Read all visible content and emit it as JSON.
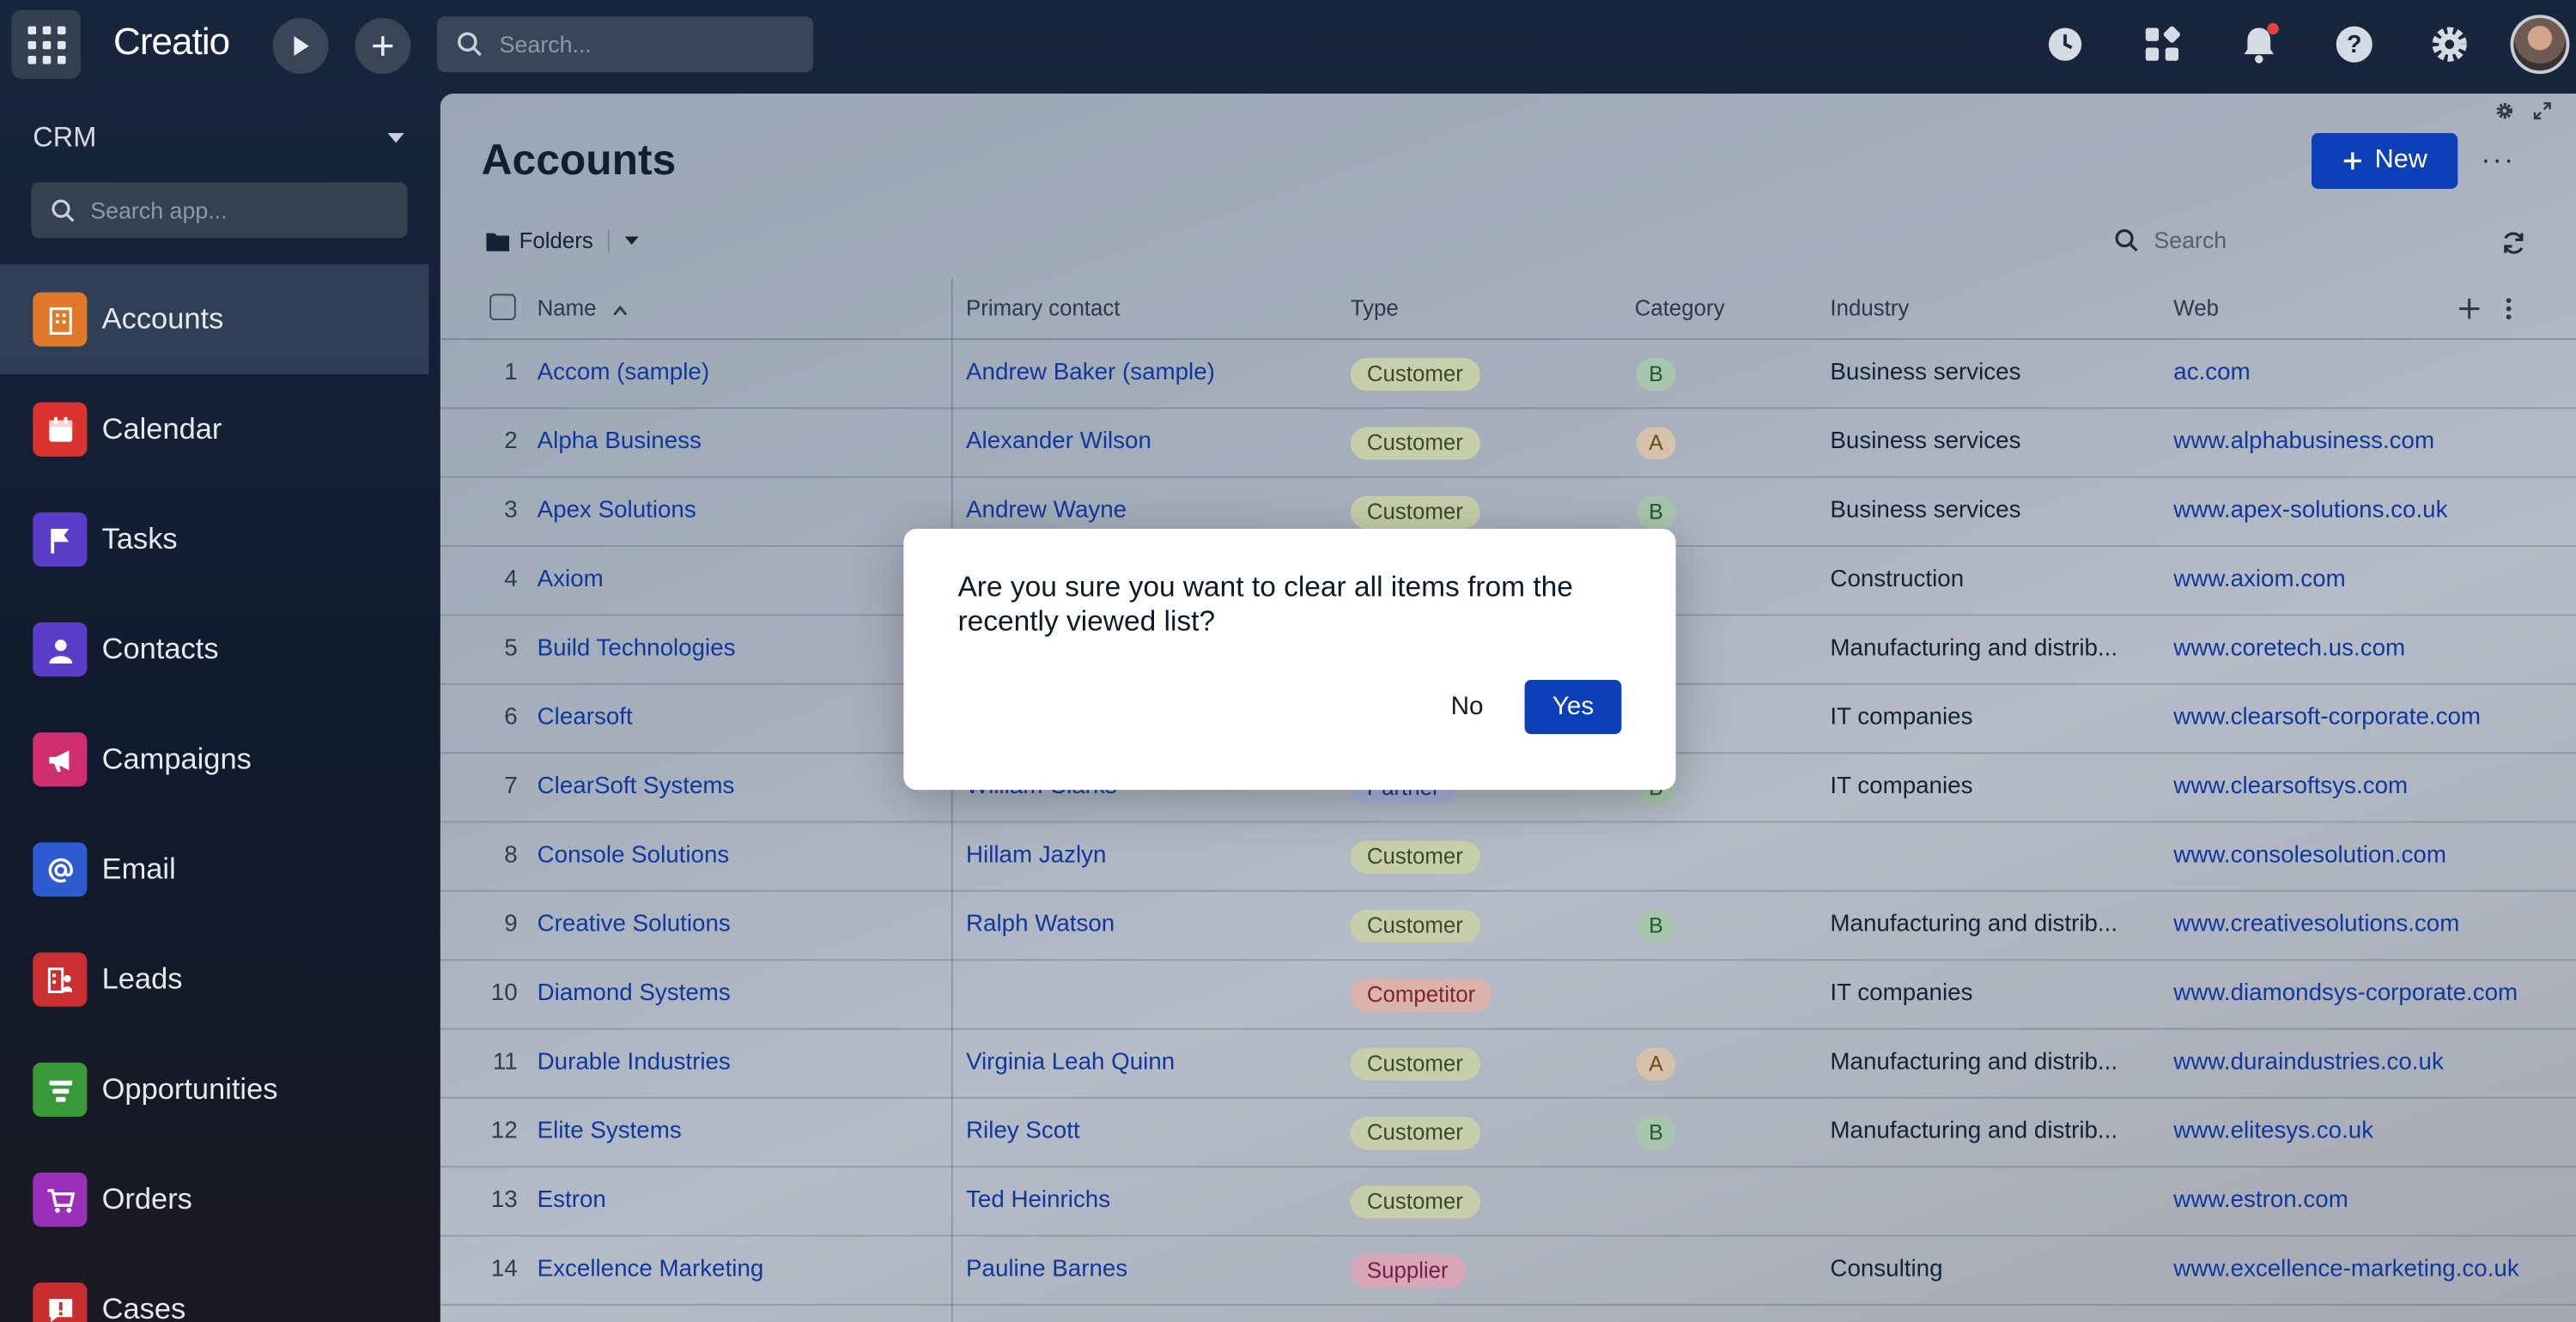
{
  "topbar": {
    "logo": "Creatio",
    "search_placeholder": "Search..."
  },
  "sidebar": {
    "app_name": "CRM",
    "search_placeholder": "Search app...",
    "items": [
      {
        "label": "Accounts",
        "icon": "building-icon",
        "color": "#e07a2a"
      },
      {
        "label": "Calendar",
        "icon": "calendar-icon",
        "color": "#d9322f"
      },
      {
        "label": "Tasks",
        "icon": "flag-icon",
        "color": "#5b3ec8"
      },
      {
        "label": "Contacts",
        "icon": "person-icon",
        "color": "#5b3ec8"
      },
      {
        "label": "Campaigns",
        "icon": "megaphone-icon",
        "color": "#d12e6e"
      },
      {
        "label": "Email",
        "icon": "at-icon",
        "color": "#2e5bd0"
      },
      {
        "label": "Leads",
        "icon": "leads-icon",
        "color": "#c9302f"
      },
      {
        "label": "Opportunities",
        "icon": "funnel-icon",
        "color": "#3a9a3a"
      },
      {
        "label": "Orders",
        "icon": "cart-icon",
        "color": "#9a2fb8"
      },
      {
        "label": "Cases",
        "icon": "case-icon",
        "color": "#c92f2f"
      }
    ]
  },
  "main": {
    "title": "Accounts",
    "new_label": "New",
    "folders_label": "Folders",
    "search_placeholder": "Search",
    "columns": {
      "name": "Name",
      "primary_contact": "Primary contact",
      "type": "Type",
      "category": "Category",
      "industry": "Industry",
      "web": "Web"
    },
    "rows": [
      {
        "n": "1",
        "name": "Accom (sample)",
        "contact": "Andrew Baker (sample)",
        "type": "Customer",
        "category": "B",
        "industry": "Business services",
        "web": "ac.com"
      },
      {
        "n": "2",
        "name": "Alpha Business",
        "contact": "Alexander Wilson",
        "type": "Customer",
        "category": "A",
        "industry": "Business services",
        "web": "www.alphabusiness.com"
      },
      {
        "n": "3",
        "name": "Apex Solutions",
        "contact": "Andrew Wayne",
        "type": "Customer",
        "category": "B",
        "industry": "Business services",
        "web": "www.apex-solutions.co.uk"
      },
      {
        "n": "4",
        "name": "Axiom",
        "contact": "",
        "type": "",
        "category": "",
        "industry": "Construction",
        "web": "www.axiom.com"
      },
      {
        "n": "5",
        "name": "Build Technologies",
        "contact": "",
        "type": "",
        "category": "",
        "industry": "Manufacturing and distrib...",
        "web": "www.coretech.us.com"
      },
      {
        "n": "6",
        "name": "Clearsoft",
        "contact": "",
        "type": "",
        "category": "",
        "industry": "IT companies",
        "web": "www.clearsoft-corporate.com"
      },
      {
        "n": "7",
        "name": "ClearSoft Systems",
        "contact": "William Clarks",
        "type": "Partner",
        "category": "B",
        "industry": "IT companies",
        "web": "www.clearsoftsys.com"
      },
      {
        "n": "8",
        "name": "Console Solutions",
        "contact": "Hillam Jazlyn",
        "type": "Customer",
        "category": "",
        "industry": "",
        "web": "www.consolesolution.com"
      },
      {
        "n": "9",
        "name": "Creative Solutions",
        "contact": "Ralph Watson",
        "type": "Customer",
        "category": "B",
        "industry": "Manufacturing and distrib...",
        "web": "www.creativesolutions.com"
      },
      {
        "n": "10",
        "name": "Diamond Systems",
        "contact": "",
        "type": "Competitor",
        "category": "",
        "industry": "IT companies",
        "web": "www.diamondsys-corporate.com"
      },
      {
        "n": "11",
        "name": "Durable Industries",
        "contact": "Virginia Leah Quinn",
        "type": "Customer",
        "category": "A",
        "industry": "Manufacturing and distrib...",
        "web": "www.duraindustries.co.uk"
      },
      {
        "n": "12",
        "name": "Elite Systems",
        "contact": "Riley Scott",
        "type": "Customer",
        "category": "B",
        "industry": "Manufacturing and distrib...",
        "web": "www.elitesys.co.uk"
      },
      {
        "n": "13",
        "name": "Estron",
        "contact": "Ted Heinrichs",
        "type": "Customer",
        "category": "",
        "industry": "",
        "web": "www.estron.com"
      },
      {
        "n": "14",
        "name": "Excellence Marketing",
        "contact": "Pauline Barnes",
        "type": "Supplier",
        "category": "",
        "industry": "Consulting",
        "web": "www.excellence-marketing.co.uk"
      }
    ]
  },
  "dialog": {
    "message": "Are you sure you want to clear all items from the recently viewed list?",
    "no_label": "No",
    "yes_label": "Yes"
  }
}
